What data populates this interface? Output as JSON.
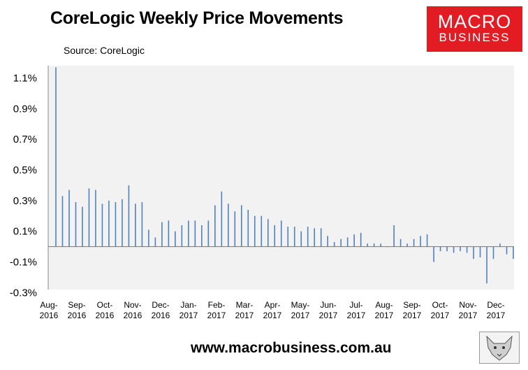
{
  "header": {
    "title": "CoreLogic Weekly Price Movements",
    "source": "Source: CoreLogic"
  },
  "logo": {
    "line1": "MACRO",
    "line2": "BUSINESS",
    "color": "#e31c24"
  },
  "footer": {
    "url": "www.macrobusiness.com.au"
  },
  "colors": {
    "bar": "#4f81bd",
    "plot_bg": "#f2f2f2"
  },
  "chart_data": {
    "type": "bar",
    "x_ticks": [
      [
        "Aug-",
        "2016"
      ],
      [
        "Sep-",
        "2016"
      ],
      [
        "Oct-",
        "2016"
      ],
      [
        "Nov-",
        "2016"
      ],
      [
        "Dec-",
        "2016"
      ],
      [
        "Jan-",
        "2017"
      ],
      [
        "Feb-",
        "2017"
      ],
      [
        "Mar-",
        "2017"
      ],
      [
        "Apr-",
        "2017"
      ],
      [
        "May-",
        "2017"
      ],
      [
        "Jun-",
        "2017"
      ],
      [
        "Jul-",
        "2017"
      ],
      [
        "Aug-",
        "2017"
      ],
      [
        "Sep-",
        "2017"
      ],
      [
        "Oct-",
        "2017"
      ],
      [
        "Nov-",
        "2017"
      ],
      [
        "Dec-",
        "2017"
      ]
    ],
    "y_ticks": [
      "1.1%",
      "0.9%",
      "0.7%",
      "0.5%",
      "0.3%",
      "0.1%",
      "-0.1%",
      "-0.3%"
    ],
    "y_tick_values": [
      1.1,
      0.9,
      0.7,
      0.5,
      0.3,
      0.1,
      -0.1,
      -0.3
    ],
    "ylim": [
      -0.28,
      1.18
    ],
    "grid": false,
    "legend": "none",
    "values": [
      1.17,
      0.33,
      0.37,
      0.29,
      0.26,
      0.38,
      0.37,
      0.28,
      0.3,
      0.29,
      0.31,
      0.4,
      0.28,
      0.29,
      0.11,
      0.06,
      0.16,
      0.17,
      0.1,
      0.14,
      0.17,
      0.17,
      0.14,
      0.17,
      0.27,
      0.36,
      0.28,
      0.23,
      0.27,
      0.24,
      0.2,
      0.2,
      0.18,
      0.14,
      0.17,
      0.13,
      0.13,
      0.1,
      0.13,
      0.12,
      0.12,
      0.07,
      0.03,
      0.05,
      0.06,
      0.08,
      0.09,
      0.02,
      0.02,
      0.02,
      0.0,
      0.14,
      0.05,
      0.02,
      0.05,
      0.07,
      0.08,
      -0.1,
      -0.03,
      -0.03,
      -0.04,
      -0.03,
      -0.04,
      -0.08,
      -0.07,
      -0.24,
      -0.08,
      0.02,
      -0.05,
      -0.08
    ]
  }
}
